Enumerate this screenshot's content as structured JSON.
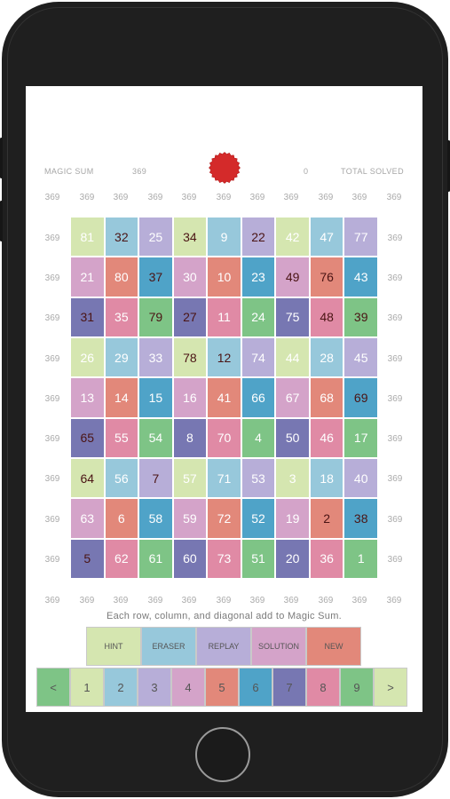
{
  "header": {
    "magic_sum_label": "MAGIC SUM",
    "magic_sum_value": "369",
    "solved_count": "0",
    "total_solved_label": "TOTAL SOLVED"
  },
  "sums": {
    "top": [
      "369",
      "369",
      "369",
      "369",
      "369",
      "369",
      "369",
      "369",
      "369",
      "369",
      "369"
    ],
    "left": [
      "369",
      "369",
      "369",
      "369",
      "369",
      "369",
      "369",
      "369",
      "369"
    ],
    "right": [
      "369",
      "369",
      "369",
      "369",
      "369",
      "369",
      "369",
      "369",
      "369"
    ],
    "bottom": [
      "369",
      "369",
      "369",
      "369",
      "369",
      "369",
      "369",
      "369",
      "369",
      "369",
      "369"
    ]
  },
  "colors": {
    "lime": "#d5e6b0",
    "sky": "#97c8db",
    "lavender": "#b7aed8",
    "pink": "#d4a3c9",
    "salmon": "#e2887a",
    "teal": "#4fa3c8",
    "indigo": "#7777b2",
    "rose": "#e08aa5",
    "green": "#7ec486"
  },
  "grid": {
    "values": [
      [
        81,
        32,
        25,
        34,
        9,
        22,
        42,
        47,
        77
      ],
      [
        21,
        80,
        37,
        30,
        10,
        23,
        49,
        76,
        43
      ],
      [
        31,
        35,
        79,
        27,
        11,
        24,
        75,
        48,
        39
      ],
      [
        26,
        29,
        33,
        78,
        12,
        74,
        44,
        28,
        45
      ],
      [
        13,
        14,
        15,
        16,
        41,
        66,
        67,
        68,
        69
      ],
      [
        65,
        55,
        54,
        8,
        70,
        4,
        50,
        46,
        17
      ],
      [
        64,
        56,
        7,
        57,
        71,
        53,
        3,
        18,
        40
      ],
      [
        63,
        6,
        58,
        59,
        72,
        52,
        19,
        2,
        38
      ],
      [
        5,
        62,
        61,
        60,
        73,
        51,
        20,
        36,
        1
      ]
    ],
    "fills": [
      [
        "lime",
        "sky",
        "lavender",
        "lime",
        "sky",
        "lavender",
        "lime",
        "sky",
        "lavender"
      ],
      [
        "pink",
        "salmon",
        "teal",
        "pink",
        "salmon",
        "teal",
        "pink",
        "salmon",
        "teal"
      ],
      [
        "indigo",
        "rose",
        "green",
        "indigo",
        "rose",
        "green",
        "indigo",
        "rose",
        "green"
      ],
      [
        "lime",
        "sky",
        "lavender",
        "lime",
        "sky",
        "lavender",
        "lime",
        "sky",
        "lavender"
      ],
      [
        "pink",
        "salmon",
        "teal",
        "pink",
        "salmon",
        "teal",
        "pink",
        "salmon",
        "teal"
      ],
      [
        "indigo",
        "rose",
        "green",
        "indigo",
        "rose",
        "green",
        "indigo",
        "rose",
        "green"
      ],
      [
        "lime",
        "sky",
        "lavender",
        "lime",
        "sky",
        "lavender",
        "lime",
        "sky",
        "lavender"
      ],
      [
        "pink",
        "salmon",
        "teal",
        "pink",
        "salmon",
        "teal",
        "pink",
        "salmon",
        "teal"
      ],
      [
        "indigo",
        "rose",
        "green",
        "indigo",
        "rose",
        "green",
        "indigo",
        "rose",
        "green"
      ]
    ],
    "given": [
      [
        0,
        1,
        0,
        1,
        0,
        1,
        0,
        0,
        0
      ],
      [
        0,
        0,
        1,
        0,
        0,
        0,
        1,
        1,
        0
      ],
      [
        1,
        0,
        1,
        1,
        0,
        0,
        0,
        1,
        1
      ],
      [
        0,
        0,
        0,
        1,
        1,
        0,
        0,
        0,
        0
      ],
      [
        0,
        0,
        0,
        0,
        0,
        0,
        0,
        0,
        1
      ],
      [
        1,
        0,
        0,
        0,
        0,
        0,
        0,
        0,
        0
      ],
      [
        1,
        0,
        1,
        0,
        0,
        0,
        0,
        0,
        0
      ],
      [
        0,
        0,
        0,
        0,
        0,
        0,
        0,
        1,
        1
      ],
      [
        1,
        0,
        0,
        0,
        0,
        0,
        0,
        0,
        0
      ]
    ]
  },
  "instruction": "Each row, column, and diagonal add to Magic Sum.",
  "actions": [
    {
      "label": "HINT",
      "color": "lime"
    },
    {
      "label": "ERASER",
      "color": "sky"
    },
    {
      "label": "REPLAY",
      "color": "lavender"
    },
    {
      "label": "SOLUTION",
      "color": "pink"
    },
    {
      "label": "NEW",
      "color": "salmon"
    }
  ],
  "keypad": [
    {
      "label": "<",
      "color": "green"
    },
    {
      "label": "1",
      "color": "lime"
    },
    {
      "label": "2",
      "color": "sky"
    },
    {
      "label": "3",
      "color": "lavender"
    },
    {
      "label": "4",
      "color": "pink"
    },
    {
      "label": "5",
      "color": "salmon"
    },
    {
      "label": "6",
      "color": "teal"
    },
    {
      "label": "7",
      "color": "indigo"
    },
    {
      "label": "8",
      "color": "rose"
    },
    {
      "label": "9",
      "color": "green"
    },
    {
      "label": ">",
      "color": "lime"
    }
  ]
}
